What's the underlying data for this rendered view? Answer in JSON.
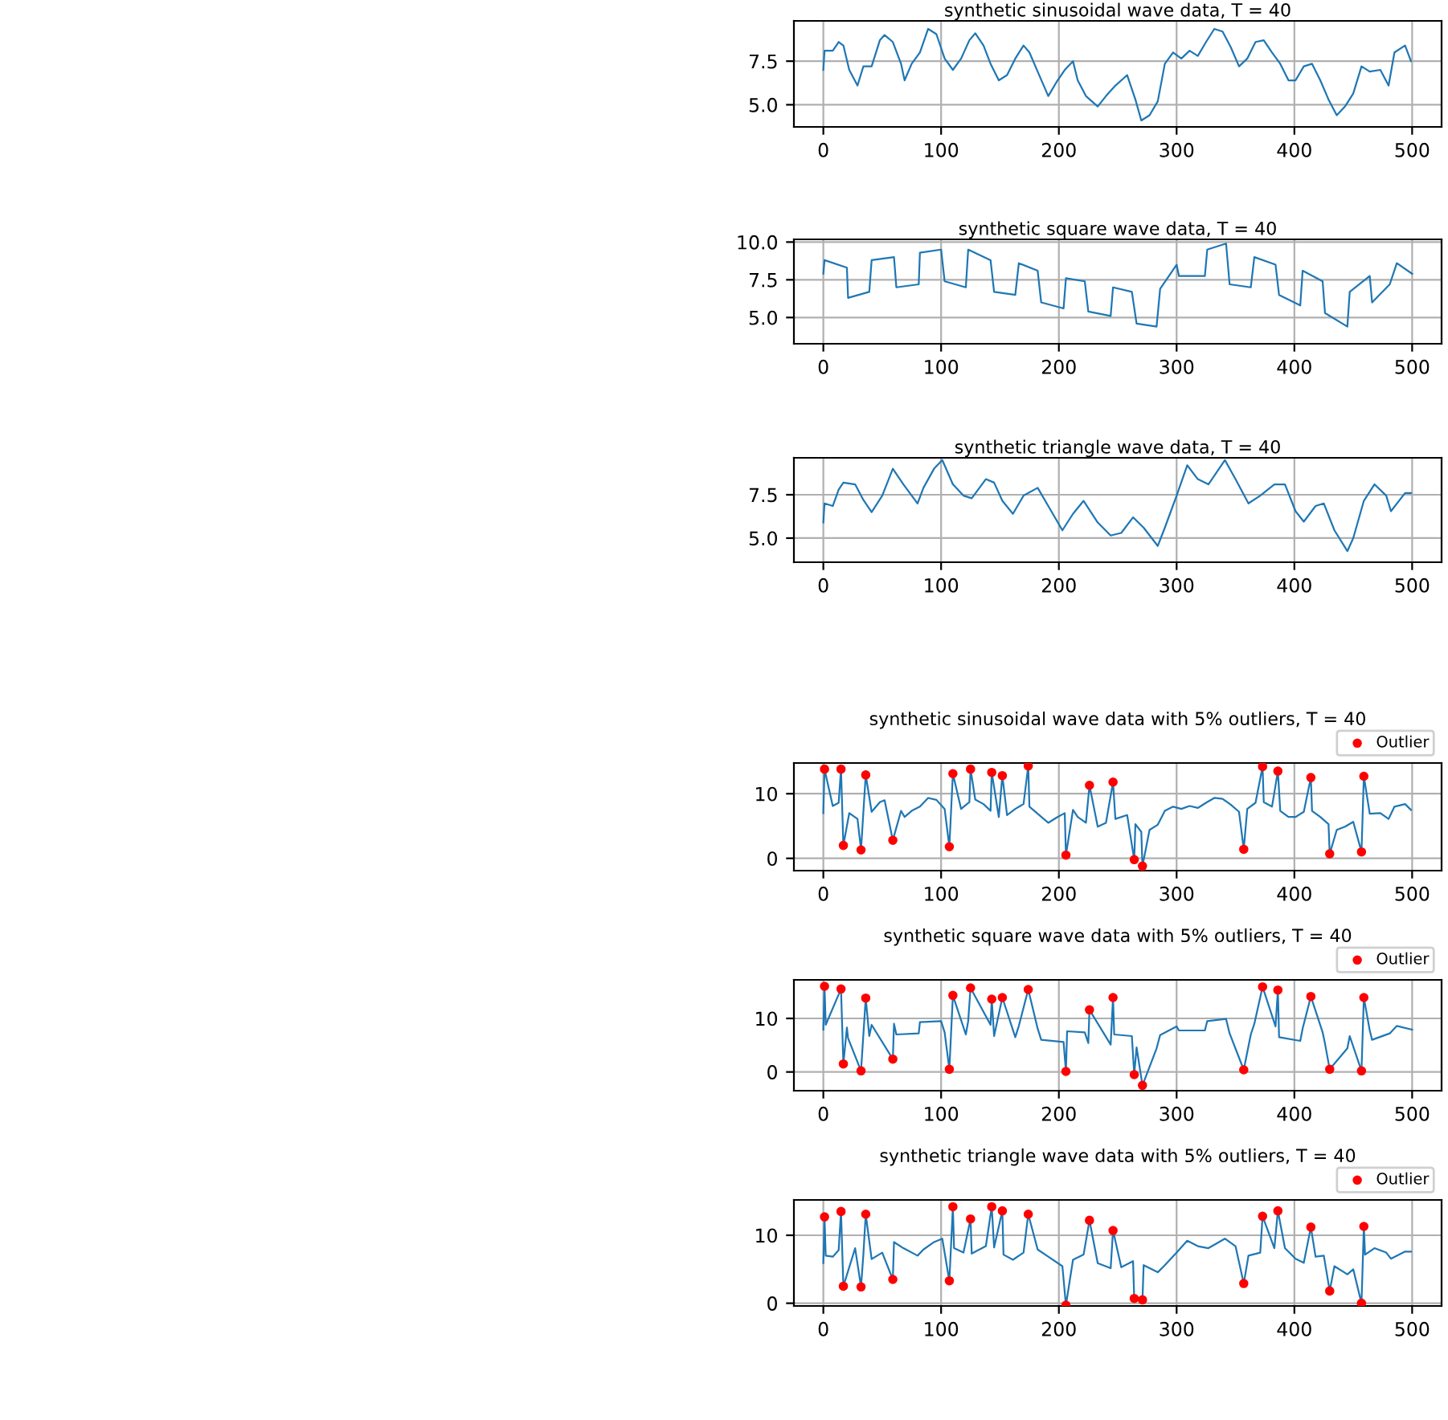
{
  "chart_data": [
    {
      "type": "line",
      "title": "synthetic sinusoidal wave data, T = 40",
      "grid": true,
      "marker": "none",
      "line_style": "solid",
      "xlim": [
        -25,
        525
      ],
      "xticks": [
        0,
        100,
        200,
        300,
        400,
        500
      ],
      "ylim": [
        3.73,
        9.81
      ],
      "yticks": [
        {
          "value": 5,
          "label": "5.0"
        },
        {
          "value": 7.5,
          "label": "7.5"
        }
      ],
      "series": [
        {
          "color": "#1f77b4",
          "x": [
            0,
            1,
            8,
            13,
            17,
            22,
            29,
            34,
            41,
            48,
            52,
            59,
            66,
            69,
            75,
            82,
            89,
            96,
            103,
            110,
            117,
            124,
            129,
            136,
            142,
            149,
            156,
            163,
            170,
            175,
            182,
            191,
            198,
            205,
            212,
            216,
            223,
            233,
            240,
            248,
            258,
            265,
            270,
            277,
            284,
            290,
            297,
            304,
            311,
            318,
            325,
            332,
            339,
            346,
            353,
            360,
            367,
            374,
            381,
            388,
            395,
            401,
            408,
            415,
            422,
            429,
            436,
            443,
            450,
            457,
            464,
            473,
            480,
            485,
            494,
            499
          ],
          "values": [
            7.0,
            8.1,
            8.1,
            8.6,
            8.4,
            7.0,
            6.1,
            7.2,
            7.2,
            8.7,
            9.0,
            8.6,
            7.35,
            6.4,
            7.35,
            8.0,
            9.35,
            9.05,
            7.65,
            7.0,
            7.65,
            8.7,
            9.1,
            8.4,
            7.35,
            6.4,
            6.7,
            7.65,
            8.4,
            8.0,
            6.9,
            5.5,
            6.3,
            7.0,
            7.5,
            6.4,
            5.5,
            4.9,
            5.5,
            6.1,
            6.7,
            5.3,
            4.1,
            4.4,
            5.2,
            7.35,
            8.0,
            7.65,
            8.1,
            7.8,
            8.6,
            9.35,
            9.2,
            8.3,
            7.2,
            7.65,
            8.6,
            8.7,
            8.0,
            7.35,
            6.4,
            6.4,
            7.2,
            7.35,
            6.4,
            5.3,
            4.4,
            4.9,
            5.65,
            7.2,
            6.9,
            7.0,
            6.1,
            8.0,
            8.4,
            7.5
          ]
        }
      ]
    },
    {
      "type": "line",
      "title": "synthetic square wave data, T = 40",
      "grid": true,
      "marker": "none",
      "line_style": "solid",
      "xlim": [
        -25,
        525
      ],
      "xticks": [
        0,
        100,
        200,
        300,
        400,
        500
      ],
      "ylim": [
        3.26,
        10.18
      ],
      "yticks": [
        {
          "value": 5,
          "label": "5.0"
        },
        {
          "value": 7.5,
          "label": "7.5"
        },
        {
          "value": 10,
          "label": "10.0"
        }
      ],
      "series": [
        {
          "color": "#1f77b4",
          "x": [
            0,
            1,
            20,
            21,
            39,
            41,
            60,
            62,
            81,
            82,
            100,
            103,
            121,
            123,
            142,
            145,
            163,
            166,
            182,
            185,
            204,
            206,
            222,
            225,
            244,
            246,
            262,
            266,
            283,
            286,
            300,
            302,
            324,
            326,
            342,
            345,
            363,
            366,
            384,
            387,
            405,
            407,
            424,
            426,
            445,
            447,
            464,
            466,
            481,
            487,
            500
          ],
          "values": [
            7.9,
            8.8,
            8.3,
            6.3,
            6.7,
            8.8,
            9.0,
            7.0,
            7.2,
            9.3,
            9.5,
            7.4,
            7.0,
            9.5,
            8.8,
            6.7,
            6.5,
            8.6,
            8.1,
            6.0,
            5.6,
            7.6,
            7.4,
            5.4,
            5.1,
            7.0,
            6.7,
            4.6,
            4.4,
            6.9,
            8.5,
            7.75,
            7.75,
            9.5,
            9.9,
            7.2,
            7.0,
            9.0,
            8.5,
            6.5,
            5.8,
            8.1,
            7.4,
            5.3,
            4.4,
            6.7,
            7.75,
            6.0,
            7.2,
            8.6,
            7.9
          ]
        }
      ]
    },
    {
      "type": "line",
      "title": "synthetic triangle wave data, T = 40",
      "grid": true,
      "marker": "none",
      "line_style": "solid",
      "xlim": [
        -25,
        525
      ],
      "xticks": [
        0,
        100,
        200,
        300,
        400,
        500
      ],
      "ylim": [
        3.61,
        9.63
      ],
      "yticks": [
        {
          "value": 5,
          "label": "5.0"
        },
        {
          "value": 7.5,
          "label": "7.5"
        }
      ],
      "series": [
        {
          "color": "#1f77b4",
          "x": [
            0,
            1,
            8,
            13,
            17,
            27,
            34,
            41,
            50,
            59,
            68,
            80,
            85,
            94,
            101,
            110,
            119,
            126,
            138,
            145,
            152,
            161,
            170,
            182,
            191,
            203,
            212,
            221,
            233,
            244,
            253,
            263,
            272,
            284,
            290,
            300,
            309,
            318,
            327,
            341,
            350,
            361,
            371,
            383,
            392,
            401,
            408,
            418,
            425,
            434,
            445,
            450,
            459,
            468,
            478,
            482,
            494,
            499
          ],
          "values": [
            5.9,
            7.0,
            6.85,
            7.8,
            8.2,
            8.1,
            7.2,
            6.5,
            7.45,
            9.0,
            8.1,
            7.0,
            7.9,
            9.0,
            9.5,
            8.1,
            7.45,
            7.3,
            8.4,
            8.2,
            7.15,
            6.4,
            7.45,
            7.9,
            6.85,
            5.45,
            6.4,
            7.15,
            5.9,
            5.15,
            5.3,
            6.2,
            5.6,
            4.55,
            5.6,
            7.45,
            9.2,
            8.4,
            8.1,
            9.5,
            8.4,
            7.0,
            7.45,
            8.1,
            8.1,
            6.55,
            5.95,
            6.85,
            7.0,
            5.45,
            4.25,
            5.0,
            7.15,
            8.1,
            7.45,
            6.55,
            7.6,
            7.6
          ]
        }
      ]
    },
    {
      "type": "line",
      "title": "synthetic sinusoidal wave data with 5% outliers, T = 40",
      "grid": true,
      "legend": "top right",
      "line_style": "solid",
      "xlim": [
        -25,
        525
      ],
      "xticks": [
        0,
        100,
        200,
        300,
        400,
        500
      ],
      "ylim": [
        -1.9,
        14.75
      ],
      "yticks": [
        0,
        10
      ],
      "series": [
        {
          "color": "#1f77b4",
          "marker": "none",
          "x": [
            0,
            1,
            8,
            13,
            15,
            17,
            22,
            29,
            32,
            34,
            36,
            41,
            48,
            52,
            59,
            66,
            69,
            75,
            82,
            89,
            96,
            103,
            107,
            110,
            117,
            124,
            125,
            129,
            136,
            142,
            143,
            149,
            152,
            156,
            163,
            170,
            174,
            175,
            182,
            191,
            198,
            205,
            206,
            212,
            216,
            223,
            226,
            233,
            240,
            246,
            248,
            258,
            264,
            265,
            270,
            271,
            277,
            284,
            290,
            297,
            304,
            311,
            318,
            325,
            332,
            339,
            346,
            353,
            357,
            360,
            367,
            373,
            374,
            381,
            386,
            388,
            395,
            401,
            408,
            414,
            415,
            422,
            429,
            430,
            436,
            443,
            450,
            457,
            459,
            464,
            473,
            480,
            485,
            494,
            499
          ],
          "values": [
            7.0,
            13.8,
            8.1,
            8.6,
            13.8,
            2.0,
            7.0,
            6.1,
            1.3,
            7.2,
            12.9,
            7.2,
            8.7,
            9.0,
            2.8,
            7.35,
            6.4,
            7.35,
            8.0,
            9.35,
            9.05,
            7.65,
            1.8,
            13.1,
            7.65,
            8.7,
            13.8,
            9.1,
            8.4,
            7.35,
            13.3,
            6.4,
            12.8,
            6.7,
            7.65,
            8.4,
            14.3,
            8.0,
            6.9,
            5.5,
            6.3,
            7.0,
            0.5,
            7.5,
            6.4,
            5.5,
            11.3,
            4.9,
            5.5,
            11.8,
            6.1,
            6.7,
            -0.2,
            5.3,
            4.1,
            -1.2,
            4.4,
            5.2,
            7.35,
            8.0,
            7.65,
            8.1,
            7.8,
            8.6,
            9.35,
            9.2,
            8.3,
            7.2,
            1.4,
            7.65,
            8.6,
            14.2,
            8.7,
            8.0,
            13.5,
            7.35,
            6.4,
            6.4,
            7.2,
            12.5,
            7.35,
            6.4,
            5.3,
            0.7,
            4.4,
            4.9,
            5.65,
            1.0,
            12.7,
            6.9,
            7.0,
            6.1,
            8.0,
            8.4,
            7.5
          ]
        },
        {
          "type": "scatter",
          "name": "Outlier",
          "color": "#ff0000",
          "marker": "circle",
          "x": [
            1,
            15,
            17,
            32,
            36,
            59,
            107,
            110,
            125,
            143,
            152,
            174,
            206,
            226,
            246,
            264,
            271,
            357,
            373,
            386,
            414,
            430,
            457,
            459
          ],
          "values": [
            13.8,
            13.8,
            2.0,
            1.3,
            12.9,
            2.8,
            1.8,
            13.1,
            13.8,
            13.3,
            12.8,
            14.3,
            0.5,
            11.3,
            11.8,
            -0.2,
            -1.2,
            1.4,
            14.2,
            13.5,
            12.5,
            0.7,
            1.0,
            12.7
          ]
        }
      ]
    },
    {
      "type": "line",
      "title": "synthetic square wave data with 5% outliers, T = 40",
      "grid": true,
      "legend": "top right",
      "line_style": "solid",
      "xlim": [
        -25,
        525
      ],
      "xticks": [
        0,
        100,
        200,
        300,
        400,
        500
      ],
      "ylim": [
        -3.5,
        17.2
      ],
      "yticks": [
        0,
        10
      ],
      "series": [
        {
          "color": "#1f77b4",
          "marker": "none",
          "x": [
            0,
            1,
            2,
            15,
            17,
            20,
            21,
            32,
            36,
            39,
            41,
            59,
            60,
            62,
            81,
            82,
            100,
            103,
            107,
            110,
            121,
            123,
            125,
            142,
            143,
            145,
            152,
            163,
            166,
            174,
            182,
            185,
            204,
            206,
            207,
            222,
            225,
            226,
            244,
            246,
            247,
            262,
            264,
            266,
            271,
            283,
            286,
            300,
            302,
            324,
            326,
            342,
            345,
            357,
            363,
            366,
            373,
            384,
            386,
            387,
            405,
            407,
            414,
            424,
            426,
            430,
            445,
            447,
            457,
            459,
            464,
            466,
            481,
            487,
            500
          ],
          "values": [
            7.9,
            16.0,
            8.8,
            15.5,
            1.5,
            8.3,
            6.3,
            0.2,
            13.8,
            6.7,
            8.8,
            2.4,
            9.0,
            7.0,
            7.2,
            9.3,
            9.5,
            7.4,
            0.5,
            14.3,
            7.0,
            9.5,
            15.7,
            8.8,
            13.6,
            6.7,
            13.9,
            6.5,
            8.6,
            15.4,
            8.1,
            6.0,
            5.6,
            0.1,
            7.6,
            7.4,
            5.4,
            11.6,
            5.1,
            13.9,
            7.0,
            6.7,
            -0.5,
            4.6,
            -2.5,
            4.4,
            6.9,
            8.5,
            7.75,
            7.75,
            9.5,
            9.9,
            7.2,
            0.4,
            7.0,
            9.0,
            15.9,
            8.5,
            15.3,
            6.5,
            5.8,
            8.1,
            14.1,
            7.4,
            5.3,
            0.5,
            4.4,
            6.7,
            0.2,
            13.9,
            7.75,
            6.0,
            7.2,
            8.6,
            7.9
          ]
        },
        {
          "type": "scatter",
          "name": "Outlier",
          "color": "#ff0000",
          "marker": "circle",
          "x": [
            1,
            15,
            17,
            32,
            36,
            59,
            107,
            110,
            125,
            143,
            152,
            174,
            206,
            226,
            246,
            264,
            271,
            357,
            373,
            386,
            414,
            430,
            457,
            459
          ],
          "values": [
            16.0,
            15.5,
            1.5,
            0.2,
            13.8,
            2.4,
            0.5,
            14.3,
            15.7,
            13.6,
            13.9,
            15.4,
            0.1,
            11.6,
            13.9,
            -0.5,
            -2.5,
            0.4,
            15.9,
            15.3,
            14.1,
            0.5,
            0.2,
            13.9
          ]
        }
      ]
    },
    {
      "type": "line",
      "title": "synthetic triangle wave data with 5% outliers, T = 40",
      "grid": true,
      "legend": "top right",
      "line_style": "solid",
      "xlim": [
        -25,
        525
      ],
      "xticks": [
        0,
        100,
        200,
        300,
        400,
        500
      ],
      "ylim": [
        -0.4,
        15.2
      ],
      "yticks": [
        0,
        10
      ],
      "series": [
        {
          "color": "#1f77b4",
          "marker": "none",
          "x": [
            0,
            1,
            2,
            8,
            13,
            15,
            17,
            27,
            32,
            34,
            36,
            41,
            50,
            59,
            60,
            68,
            80,
            85,
            94,
            101,
            107,
            110,
            111,
            119,
            125,
            126,
            138,
            143,
            145,
            152,
            153,
            161,
            170,
            174,
            182,
            191,
            203,
            206,
            212,
            221,
            226,
            233,
            244,
            246,
            253,
            263,
            264,
            271,
            272,
            284,
            290,
            300,
            309,
            318,
            327,
            341,
            350,
            357,
            361,
            371,
            373,
            383,
            386,
            392,
            401,
            408,
            414,
            418,
            425,
            430,
            434,
            445,
            450,
            457,
            459,
            460,
            468,
            478,
            482,
            494,
            499
          ],
          "values": [
            5.9,
            12.7,
            7.0,
            6.85,
            7.8,
            13.5,
            2.5,
            8.1,
            2.4,
            7.2,
            13.1,
            6.5,
            7.45,
            3.5,
            9.0,
            8.1,
            7.0,
            7.9,
            9.0,
            9.5,
            3.3,
            14.2,
            8.1,
            7.45,
            12.4,
            7.3,
            8.4,
            14.2,
            8.2,
            13.6,
            7.15,
            6.4,
            7.45,
            13.1,
            7.9,
            6.85,
            5.45,
            -0.3,
            6.4,
            7.15,
            12.2,
            5.9,
            5.15,
            10.7,
            5.3,
            6.2,
            0.7,
            0.5,
            5.6,
            4.55,
            5.6,
            7.45,
            9.2,
            8.4,
            8.1,
            9.5,
            8.4,
            2.9,
            7.0,
            7.45,
            12.8,
            8.1,
            13.6,
            8.1,
            6.55,
            5.95,
            11.2,
            6.85,
            7.0,
            1.8,
            5.45,
            4.25,
            5.0,
            0.0,
            11.3,
            7.15,
            8.1,
            7.45,
            6.55,
            7.6,
            7.6
          ]
        },
        {
          "type": "scatter",
          "name": "Outlier",
          "color": "#ff0000",
          "marker": "circle",
          "x": [
            1,
            15,
            17,
            32,
            36,
            59,
            107,
            110,
            125,
            143,
            152,
            174,
            206,
            226,
            246,
            264,
            271,
            357,
            373,
            386,
            414,
            430,
            457,
            459
          ],
          "values": [
            12.7,
            13.5,
            2.5,
            2.4,
            13.1,
            3.5,
            3.3,
            14.2,
            12.4,
            14.2,
            13.6,
            13.1,
            -0.3,
            12.2,
            10.7,
            0.7,
            0.5,
            2.9,
            12.8,
            13.6,
            11.2,
            1.8,
            0.0,
            11.3
          ]
        }
      ]
    }
  ]
}
